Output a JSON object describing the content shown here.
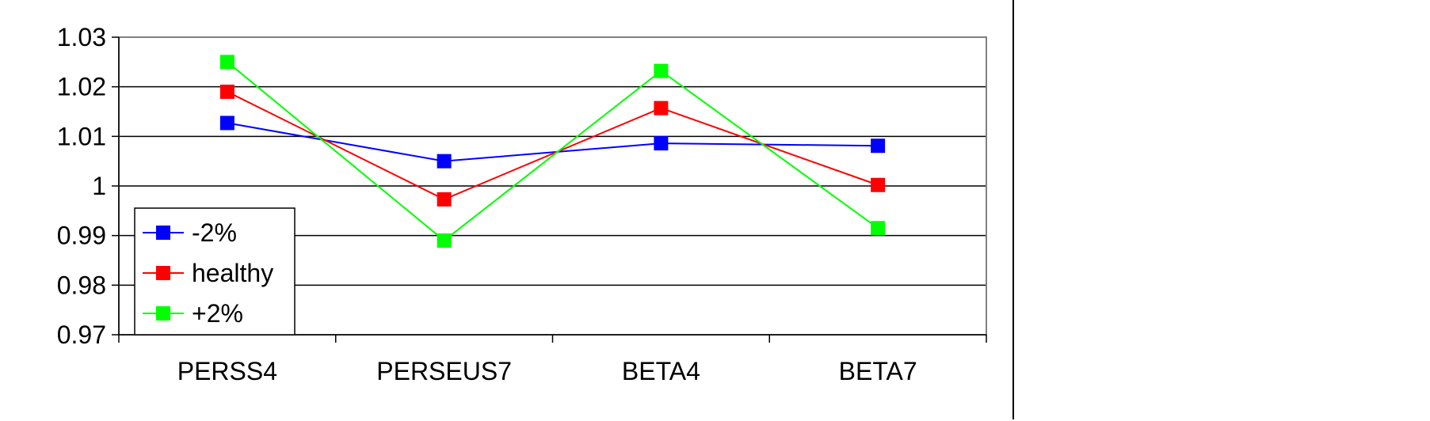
{
  "chart_data": {
    "type": "line",
    "title": "",
    "xlabel": "",
    "ylabel": "",
    "categories": [
      "PERSS4",
      "PERSEUS7",
      "BETA4",
      "BETA7"
    ],
    "ylim": [
      0.97,
      1.03
    ],
    "yticks": [
      0.97,
      0.98,
      0.99,
      1,
      1.01,
      1.02,
      1.03
    ],
    "ytick_labels": [
      "0.97",
      "0.98",
      "0.99",
      "1",
      "1.01",
      "1.02",
      "1.03"
    ],
    "grid": true,
    "legend_position": "bottom-left",
    "series": [
      {
        "name": "-2%",
        "color": "#0000ff",
        "marker": "square",
        "values": [
          1.0127,
          1.005,
          1.0086,
          1.0081
        ]
      },
      {
        "name": "healthy",
        "color": "#ff0000",
        "marker": "square",
        "values": [
          1.019,
          0.9973,
          1.0157,
          1.0002
        ]
      },
      {
        "name": "+2%",
        "color": "#00ff00",
        "marker": "square",
        "values": [
          1.025,
          0.989,
          1.0232,
          0.9915
        ]
      }
    ]
  }
}
